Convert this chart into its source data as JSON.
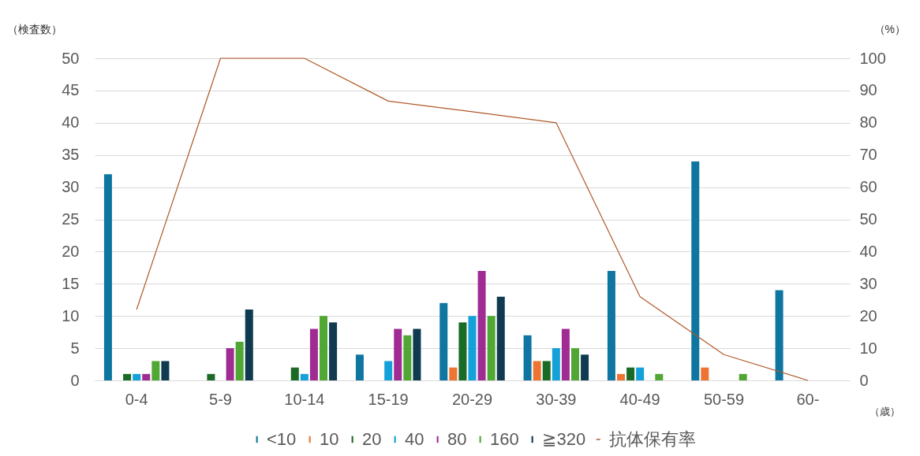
{
  "chart_data": {
    "type": "bar",
    "ylabel": "（検査数）",
    "y2label": "（%）",
    "xlabel": "（歳）",
    "categories": [
      "0-4",
      "5-9",
      "10-14",
      "15-19",
      "20-29",
      "30-39",
      "40-49",
      "50-59",
      "60-"
    ],
    "series": [
      {
        "name": "<10",
        "color": "#0e76a0",
        "values": [
          32,
          0,
          0,
          4,
          12,
          7,
          17,
          34,
          14
        ]
      },
      {
        "name": "10",
        "color": "#ed7431",
        "values": [
          0,
          0,
          0,
          0,
          2,
          3,
          1,
          2,
          0
        ]
      },
      {
        "name": "20",
        "color": "#1a6b25",
        "values": [
          1,
          1,
          2,
          0,
          9,
          3,
          2,
          0,
          0
        ]
      },
      {
        "name": "40",
        "color": "#14a0d8",
        "values": [
          1,
          0,
          1,
          3,
          10,
          5,
          2,
          0,
          0
        ]
      },
      {
        "name": "80",
        "color": "#a02c93",
        "values": [
          1,
          5,
          8,
          8,
          17,
          8,
          0,
          0,
          0
        ]
      },
      {
        "name": "160",
        "color": "#50a733",
        "values": [
          3,
          6,
          10,
          7,
          10,
          5,
          1,
          1,
          0
        ]
      },
      {
        "name": "≧320",
        "color": "#0f3a50",
        "values": [
          3,
          11,
          9,
          8,
          13,
          4,
          0,
          0,
          0
        ]
      },
      {
        "name": "抗体保有率",
        "type": "line",
        "axis": "y2",
        "color": "#b0582a",
        "values": [
          22,
          100,
          100,
          86.7,
          83.4,
          80,
          26,
          8,
          0
        ]
      }
    ],
    "ylim": [
      0,
      50
    ],
    "yticks": [
      0,
      5,
      10,
      15,
      20,
      25,
      30,
      35,
      40,
      45,
      50
    ],
    "y2lim": [
      0,
      100
    ],
    "y2ticks": [
      0,
      10,
      20,
      30,
      40,
      50,
      60,
      70,
      80,
      90,
      100
    ],
    "grid": "y",
    "legend": "bottom"
  }
}
